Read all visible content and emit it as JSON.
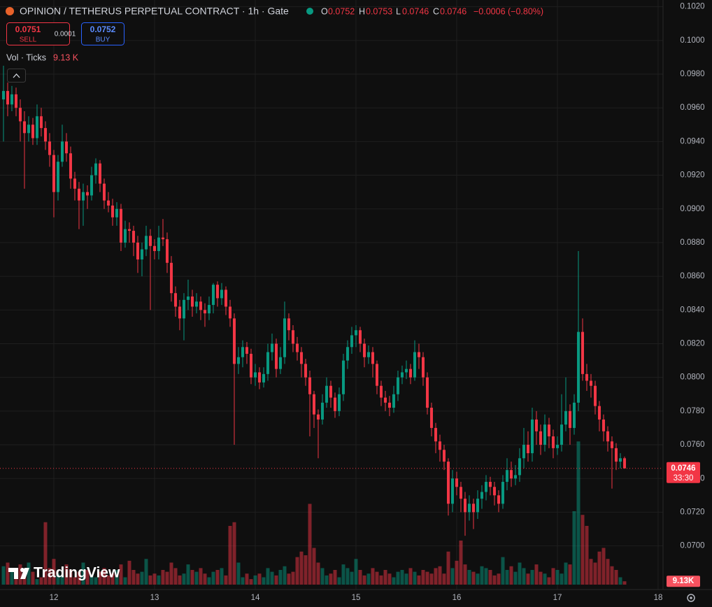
{
  "header": {
    "title": "OPINION / TETHERUS PERPETUAL CONTRACT · 1h · Gate",
    "ohlc": [
      {
        "label": "O",
        "value": "0.0752"
      },
      {
        "label": "H",
        "value": "0.0753"
      },
      {
        "label": "L",
        "value": "0.0746"
      },
      {
        "label": "C",
        "value": "0.0746"
      }
    ],
    "change": "−0.0006 (−0.80%)"
  },
  "trade": {
    "sell_price": "0.0751",
    "sell_label": "SELL",
    "spread": "0.0001",
    "buy_price": "0.0752",
    "buy_label": "BUY"
  },
  "volume_legend": {
    "label": "Vol · Ticks",
    "value": "9.13 K"
  },
  "watermark": "TradingView",
  "chart_data": {
    "type": "candlestick",
    "open": [
      0.0965,
      0.097,
      0.0962,
      0.0968,
      0.096,
      0.0952,
      0.0945,
      0.095,
      0.0942,
      0.0955,
      0.0948,
      0.094,
      0.0932,
      0.091,
      0.0928,
      0.094,
      0.0933,
      0.0918,
      0.0912,
      0.0905,
      0.091,
      0.0908,
      0.092,
      0.0927,
      0.0915,
      0.0905,
      0.0902,
      0.0895,
      0.09,
      0.088,
      0.0888,
      0.0887,
      0.088,
      0.087,
      0.0876,
      0.0884,
      0.0878,
      0.0875,
      0.0883,
      0.0882,
      0.0868,
      0.085,
      0.0842,
      0.0835,
      0.0846,
      0.0848,
      0.0842,
      0.0845,
      0.084,
      0.0838,
      0.0843,
      0.0855,
      0.0847,
      0.0852,
      0.0842,
      0.0835,
      0.0808,
      0.0812,
      0.0818,
      0.0814,
      0.08,
      0.0803,
      0.0797,
      0.0802,
      0.0815,
      0.082,
      0.0805,
      0.0812,
      0.0835,
      0.0828,
      0.082,
      0.0815,
      0.0808,
      0.08,
      0.079,
      0.0778,
      0.0775,
      0.0785,
      0.0795,
      0.0788,
      0.078,
      0.079,
      0.081,
      0.0818,
      0.0825,
      0.0828,
      0.082,
      0.0812,
      0.0815,
      0.0808,
      0.0795,
      0.0788,
      0.0785,
      0.0782,
      0.079,
      0.08,
      0.0803,
      0.0805,
      0.08,
      0.0815,
      0.0812,
      0.08,
      0.0782,
      0.077,
      0.0762,
      0.0757,
      0.075,
      0.0725,
      0.074,
      0.0735,
      0.0728,
      0.072,
      0.0725,
      0.072,
      0.0728,
      0.0732,
      0.0738,
      0.0735,
      0.073,
      0.0725,
      0.0738,
      0.0745,
      0.074,
      0.0742,
      0.0752,
      0.076,
      0.0755,
      0.0775,
      0.0768,
      0.076,
      0.0772,
      0.0765,
      0.0758,
      0.076,
      0.0772,
      0.078,
      0.077,
      0.0785,
      0.0827,
      0.0802,
      0.0798,
      0.0795,
      0.0783,
      0.0775,
      0.0768,
      0.0762,
      0.0758,
      0.075,
      0.0752
    ],
    "high": [
      0.0985,
      0.0975,
      0.0973,
      0.0972,
      0.0965,
      0.0958,
      0.0955,
      0.0954,
      0.0962,
      0.096,
      0.0952,
      0.0945,
      0.0935,
      0.0932,
      0.095,
      0.0945,
      0.0937,
      0.0922,
      0.0916,
      0.0915,
      0.0914,
      0.0925,
      0.093,
      0.0929,
      0.0918,
      0.091,
      0.0906,
      0.0904,
      0.0903,
      0.0893,
      0.0892,
      0.089,
      0.0884,
      0.088,
      0.089,
      0.0888,
      0.0882,
      0.089,
      0.0894,
      0.0886,
      0.0872,
      0.0854,
      0.0846,
      0.085,
      0.0858,
      0.0852,
      0.085,
      0.0848,
      0.0844,
      0.0848,
      0.0856,
      0.0857,
      0.0856,
      0.0854,
      0.0846,
      0.0838,
      0.0818,
      0.0822,
      0.0821,
      0.0817,
      0.0808,
      0.0806,
      0.0806,
      0.082,
      0.0826,
      0.0823,
      0.0818,
      0.0845,
      0.0838,
      0.0831,
      0.0824,
      0.0818,
      0.0811,
      0.0804,
      0.0792,
      0.0781,
      0.079,
      0.08,
      0.0798,
      0.0791,
      0.0794,
      0.0814,
      0.0822,
      0.083,
      0.0831,
      0.083,
      0.0823,
      0.0819,
      0.0818,
      0.081,
      0.0798,
      0.0792,
      0.0789,
      0.0795,
      0.0804,
      0.0807,
      0.081,
      0.0808,
      0.0822,
      0.082,
      0.0815,
      0.0803,
      0.0785,
      0.0773,
      0.0766,
      0.076,
      0.0752,
      0.0745,
      0.0744,
      0.0738,
      0.0732,
      0.073,
      0.0728,
      0.0733,
      0.0736,
      0.0742,
      0.0741,
      0.0738,
      0.0733,
      0.0742,
      0.0752,
      0.075,
      0.0748,
      0.0758,
      0.077,
      0.0768,
      0.0782,
      0.078,
      0.0772,
      0.0778,
      0.0776,
      0.0769,
      0.0765,
      0.079,
      0.08,
      0.0784,
      0.079,
      0.0875,
      0.0835,
      0.0808,
      0.0802,
      0.0798,
      0.0786,
      0.0778,
      0.0771,
      0.0765,
      0.0761,
      0.0755,
      0.0753
    ],
    "low": [
      0.094,
      0.0955,
      0.0958,
      0.0955,
      0.094,
      0.0912,
      0.094,
      0.0938,
      0.0938,
      0.0943,
      0.0935,
      0.0925,
      0.0895,
      0.0905,
      0.0925,
      0.0928,
      0.0912,
      0.0905,
      0.0888,
      0.089,
      0.09,
      0.0905,
      0.0915,
      0.091,
      0.09,
      0.0898,
      0.089,
      0.089,
      0.0875,
      0.0877,
      0.088,
      0.0872,
      0.0862,
      0.086,
      0.0872,
      0.084,
      0.087,
      0.087,
      0.0878,
      0.0862,
      0.0845,
      0.0836,
      0.0828,
      0.0822,
      0.084,
      0.0836,
      0.0838,
      0.0834,
      0.083,
      0.0834,
      0.0838,
      0.0842,
      0.0843,
      0.0837,
      0.083,
      0.076,
      0.0802,
      0.0806,
      0.0808,
      0.0796,
      0.0795,
      0.0793,
      0.0794,
      0.0798,
      0.081,
      0.08,
      0.0802,
      0.0808,
      0.0822,
      0.0815,
      0.081,
      0.08,
      0.0795,
      0.0765,
      0.077,
      0.0752,
      0.0772,
      0.0782,
      0.0782,
      0.0776,
      0.0777,
      0.0786,
      0.0805,
      0.0814,
      0.0818,
      0.0815,
      0.0806,
      0.0808,
      0.08,
      0.079,
      0.0783,
      0.078,
      0.0777,
      0.0779,
      0.0786,
      0.0796,
      0.0799,
      0.0796,
      0.0798,
      0.0805,
      0.0795,
      0.0778,
      0.0765,
      0.0755,
      0.075,
      0.0745,
      0.0718,
      0.072,
      0.073,
      0.072,
      0.0706,
      0.0715,
      0.071,
      0.0716,
      0.0722,
      0.0727,
      0.073,
      0.0724,
      0.072,
      0.0722,
      0.0733,
      0.0735,
      0.0736,
      0.0738,
      0.0746,
      0.075,
      0.075,
      0.076,
      0.0754,
      0.0756,
      0.0758,
      0.0752,
      0.0754,
      0.0756,
      0.0768,
      0.076,
      0.0766,
      0.078,
      0.0798,
      0.0792,
      0.0788,
      0.0778,
      0.0768,
      0.0762,
      0.0756,
      0.0734,
      0.0745,
      0.0746,
      0.0746
    ],
    "close": [
      0.097,
      0.0962,
      0.0968,
      0.096,
      0.0952,
      0.0945,
      0.095,
      0.0942,
      0.0955,
      0.0948,
      0.094,
      0.0932,
      0.091,
      0.0928,
      0.094,
      0.0933,
      0.0918,
      0.0912,
      0.0905,
      0.091,
      0.0908,
      0.092,
      0.0927,
      0.0915,
      0.0905,
      0.0902,
      0.0895,
      0.09,
      0.088,
      0.0888,
      0.0887,
      0.088,
      0.087,
      0.0876,
      0.0884,
      0.0878,
      0.0875,
      0.0883,
      0.0882,
      0.0868,
      0.085,
      0.0842,
      0.0835,
      0.0846,
      0.0848,
      0.0842,
      0.0845,
      0.084,
      0.0838,
      0.0843,
      0.0855,
      0.0847,
      0.0852,
      0.0842,
      0.0835,
      0.0808,
      0.0812,
      0.0818,
      0.0814,
      0.08,
      0.0803,
      0.0797,
      0.0802,
      0.0815,
      0.082,
      0.0805,
      0.0812,
      0.0835,
      0.0828,
      0.082,
      0.0815,
      0.0808,
      0.08,
      0.079,
      0.0778,
      0.0775,
      0.0785,
      0.0795,
      0.0788,
      0.078,
      0.079,
      0.081,
      0.0818,
      0.0825,
      0.0828,
      0.082,
      0.0812,
      0.0815,
      0.0808,
      0.0795,
      0.0788,
      0.0785,
      0.0782,
      0.079,
      0.08,
      0.0803,
      0.0805,
      0.08,
      0.0815,
      0.0812,
      0.08,
      0.0782,
      0.077,
      0.0762,
      0.0757,
      0.075,
      0.0725,
      0.074,
      0.0735,
      0.0728,
      0.072,
      0.0725,
      0.072,
      0.0728,
      0.0732,
      0.0738,
      0.0735,
      0.073,
      0.0725,
      0.0738,
      0.0745,
      0.074,
      0.0742,
      0.0752,
      0.076,
      0.0755,
      0.0775,
      0.0768,
      0.076,
      0.0772,
      0.0765,
      0.0758,
      0.076,
      0.0772,
      0.078,
      0.077,
      0.0785,
      0.0827,
      0.0802,
      0.0798,
      0.0795,
      0.0783,
      0.0775,
      0.0768,
      0.0762,
      0.0758,
      0.075,
      0.0752,
      0.0746
    ],
    "volume": [
      50,
      60,
      35,
      30,
      55,
      25,
      60,
      35,
      15,
      20,
      170,
      45,
      70,
      30,
      25,
      55,
      40,
      20,
      35,
      60,
      40,
      25,
      20,
      35,
      45,
      25,
      30,
      40,
      55,
      20,
      65,
      40,
      30,
      35,
      70,
      25,
      30,
      25,
      40,
      35,
      60,
      45,
      25,
      30,
      55,
      40,
      35,
      45,
      30,
      20,
      35,
      40,
      45,
      25,
      160,
      170,
      60,
      20,
      30,
      15,
      25,
      30,
      20,
      45,
      35,
      25,
      40,
      50,
      30,
      35,
      75,
      90,
      80,
      220,
      100,
      60,
      45,
      25,
      30,
      40,
      20,
      55,
      45,
      35,
      70,
      40,
      25,
      30,
      45,
      35,
      25,
      40,
      30,
      20,
      35,
      40,
      30,
      45,
      35,
      25,
      40,
      35,
      30,
      45,
      50,
      30,
      90,
      45,
      65,
      120,
      55,
      40,
      35,
      30,
      50,
      45,
      40,
      25,
      30,
      75,
      40,
      50,
      35,
      60,
      45,
      30,
      40,
      55,
      35,
      30,
      20,
      45,
      40,
      30,
      60,
      55,
      200,
      390,
      190,
      160,
      70,
      60,
      90,
      100,
      70,
      50,
      40,
      20,
      9.13
    ],
    "volume_ylim": [
      0,
      400
    ],
    "last_volume_label": "9.13K",
    "last_price_label": "0.0746",
    "countdown": "33:30",
    "up_color": "#089981",
    "down_color": "#f23645",
    "ylim": [
      0.0677,
      0.1024
    ],
    "yticks": [
      {
        "value": 0.102,
        "label": "0.1020"
      },
      {
        "value": 0.1,
        "label": "0.1000"
      },
      {
        "value": 0.098,
        "label": "0.0980"
      },
      {
        "value": 0.096,
        "label": "0.0960"
      },
      {
        "value": 0.094,
        "label": "0.0940"
      },
      {
        "value": 0.092,
        "label": "0.0920"
      },
      {
        "value": 0.09,
        "label": "0.0900"
      },
      {
        "value": 0.088,
        "label": "0.0880"
      },
      {
        "value": 0.086,
        "label": "0.0860"
      },
      {
        "value": 0.084,
        "label": "0.0840"
      },
      {
        "value": 0.082,
        "label": "0.0820"
      },
      {
        "value": 0.08,
        "label": "0.0800"
      },
      {
        "value": 0.078,
        "label": "0.0780"
      },
      {
        "value": 0.076,
        "label": "0.0760"
      },
      {
        "value": 0.074,
        "label": "0.0740"
      },
      {
        "value": 0.072,
        "label": "0.0720"
      },
      {
        "value": 0.07,
        "label": "0.0700"
      }
    ],
    "xlim": [
      -0.83,
      157.17
    ],
    "xticks": [
      {
        "value": 12,
        "label": "12"
      },
      {
        "value": 36,
        "label": "13"
      },
      {
        "value": 60,
        "label": "14"
      },
      {
        "value": 84,
        "label": "15"
      },
      {
        "value": 108,
        "label": "16"
      },
      {
        "value": 132,
        "label": "17"
      },
      {
        "value": 156,
        "label": "18"
      }
    ],
    "grid": true
  }
}
